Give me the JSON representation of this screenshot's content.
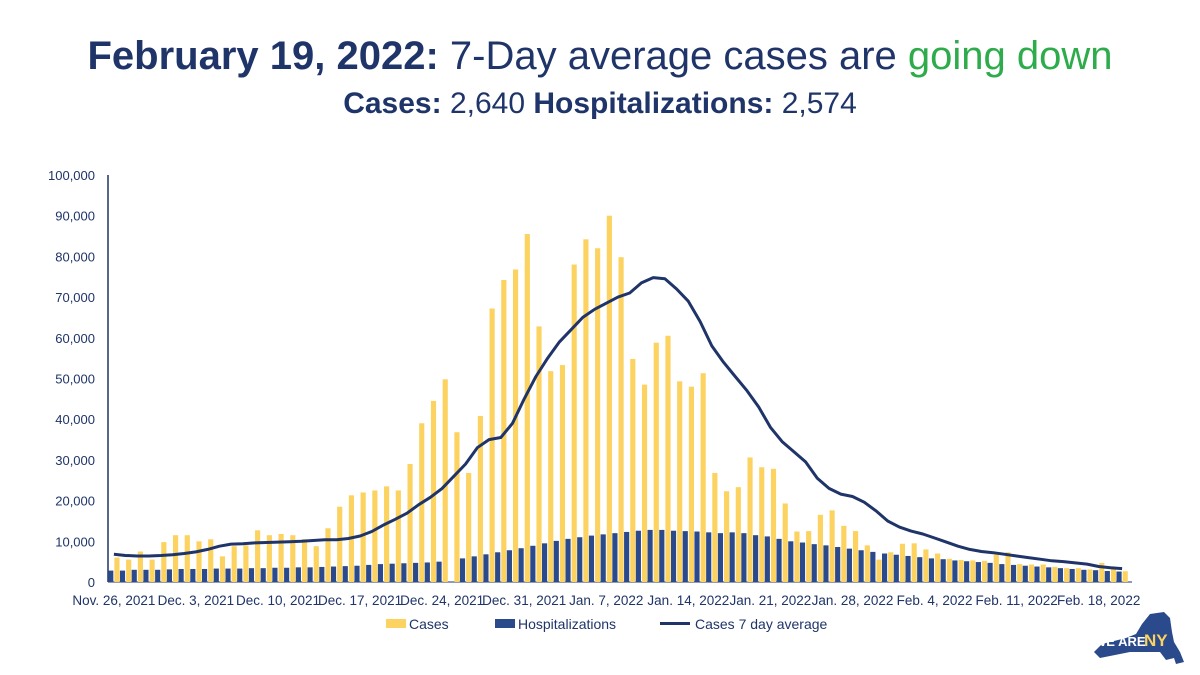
{
  "header": {
    "date": "February 19, 2022:",
    "headline_text": " 7-Day average cases are ",
    "trend": "going down",
    "trend_color": "#2eab4b",
    "cases_label": "Cases:",
    "cases_value": " 2,640 ",
    "hosp_label": "Hospitalizations:",
    "hosp_value": " 2,574"
  },
  "logo": {
    "text_we_are": "WE ARE",
    "text_ny": "NY",
    "icon": "new-york-state-icon"
  },
  "colors": {
    "cases": "#fcd360",
    "hospitalizations": "#2a4a8c",
    "avg_line": "#1f3468",
    "text": "#1f3468"
  },
  "chart_data": {
    "type": "bar",
    "title": "",
    "xlabel": "",
    "ylabel": "",
    "ylim": [
      0,
      100000
    ],
    "yticks": [
      "0",
      "10,000",
      "20,000",
      "30,000",
      "40,000",
      "50,000",
      "60,000",
      "70,000",
      "80,000",
      "90,000",
      "100,000"
    ],
    "x_tick_labels": [
      "Nov. 26, 2021",
      "Dec. 3, 2021",
      "Dec. 10, 2021",
      "Dec. 17, 2021",
      "Dec. 24, 2021",
      "Dec. 31, 2021",
      "Jan. 7, 2022",
      "Jan. 14, 2022",
      "Jan. 21, 2022",
      "Jan. 28, 2022",
      "Feb. 4, 2022",
      "Feb. 11, 2022",
      "Feb. 18, 2022"
    ],
    "x_tick_every": 7,
    "legend": [
      "Cases",
      "Hospitalizations",
      "Cases 7 day average"
    ],
    "legend_position": "bottom",
    "grid": false,
    "series": [
      {
        "name": "Cases",
        "kind": "bar",
        "values": [
          6000,
          5500,
          7500,
          5500,
          9800,
          11500,
          11500,
          10000,
          10500,
          6300,
          8800,
          9000,
          12700,
          11500,
          11800,
          11500,
          10500,
          8800,
          13200,
          18500,
          21300,
          22000,
          22500,
          23500,
          22500,
          29000,
          39000,
          44500,
          49800,
          36800,
          26800,
          40800,
          67200,
          74200,
          76800,
          85500,
          62800,
          51800,
          53300,
          78000,
          84200,
          82000,
          90000,
          79800,
          54800,
          48500,
          58800,
          60500,
          49300,
          48000,
          51300,
          26800,
          22300,
          23300,
          30600,
          28200,
          27800,
          19300,
          12400,
          12500,
          16500,
          17600,
          13800,
          12500,
          9000,
          5500,
          7300,
          9400,
          9500,
          8000,
          7000,
          5700,
          5400,
          5300,
          5200,
          6800,
          7300,
          4400,
          4300,
          4300,
          3700,
          3400,
          3400,
          3100,
          4700,
          3300,
          2640
        ]
      },
      {
        "name": "Hospitalizations",
        "kind": "bar",
        "values": [
          2800,
          2800,
          3000,
          3000,
          3000,
          3100,
          3200,
          3200,
          3200,
          3300,
          3300,
          3300,
          3400,
          3400,
          3500,
          3500,
          3600,
          3600,
          3700,
          3800,
          3900,
          4000,
          4200,
          4400,
          4500,
          4600,
          4700,
          4800,
          5000,
          0,
          5800,
          6300,
          6800,
          7300,
          7800,
          8300,
          8900,
          9500,
          10100,
          10600,
          11000,
          11400,
          11700,
          12000,
          12300,
          12600,
          12800,
          12800,
          12600,
          12500,
          12400,
          12200,
          12000,
          12200,
          12000,
          11500,
          11200,
          10600,
          10000,
          9700,
          9300,
          9000,
          8600,
          8200,
          7800,
          7400,
          7000,
          6700,
          6400,
          6100,
          5800,
          5600,
          5300,
          5100,
          4900,
          4700,
          4400,
          4200,
          4000,
          3800,
          3600,
          3400,
          3200,
          3000,
          2900,
          2700,
          2574
        ]
      },
      {
        "name": "Cases 7 day average",
        "kind": "line",
        "values": [
          6800,
          6500,
          6400,
          6400,
          6500,
          6700,
          7000,
          7400,
          8000,
          8800,
          9300,
          9400,
          9600,
          9700,
          9800,
          9900,
          10000,
          10200,
          10400,
          10400,
          10700,
          11300,
          12400,
          14000,
          15400,
          16900,
          19000,
          20800,
          23000,
          26000,
          29000,
          33000,
          35000,
          35500,
          39000,
          45000,
          50500,
          55000,
          59000,
          62000,
          65000,
          67000,
          68500,
          70000,
          71000,
          73500,
          74800,
          74500,
          72000,
          69000,
          64000,
          58000,
          54000,
          50500,
          47000,
          43000,
          38000,
          34500,
          32000,
          29500,
          25500,
          23000,
          21600,
          21000,
          19600,
          17500,
          15000,
          13500,
          12500,
          11800,
          10800,
          9800,
          8800,
          8000,
          7500,
          7200,
          6800,
          6400,
          6000,
          5600,
          5200,
          5000,
          4700,
          4400,
          3800,
          3500,
          3300
        ]
      }
    ]
  }
}
